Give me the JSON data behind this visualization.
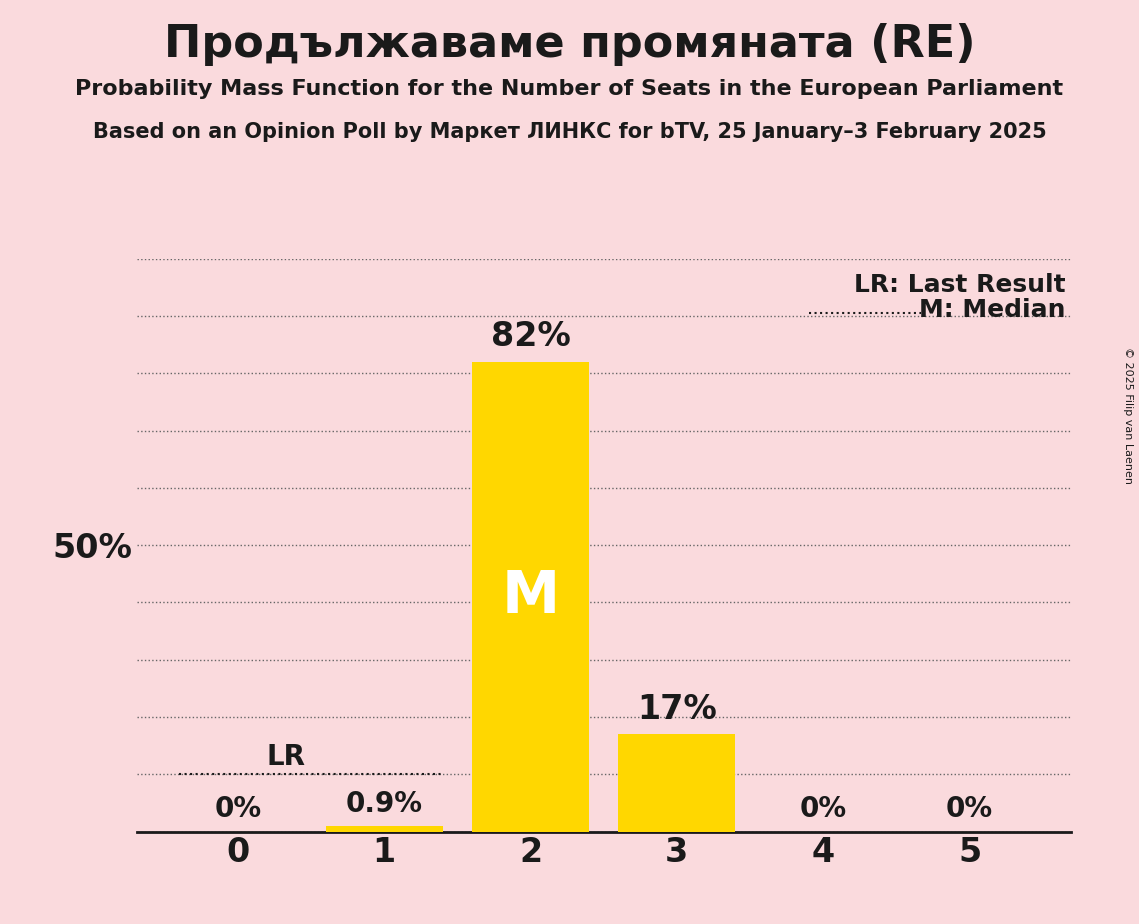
{
  "title": "Продължаваме промяната (RE)",
  "subtitle1": "Probability Mass Function for the Number of Seats in the European Parliament",
  "subtitle2": "Based on an Opinion Poll by Маркет ЛИНКС for bTV, 25 January–3 February 2025",
  "copyright": "© 2025 Filip van Laenen",
  "categories": [
    0,
    1,
    2,
    3,
    4,
    5
  ],
  "values": [
    0.0,
    0.9,
    82.0,
    17.0,
    0.0,
    0.0
  ],
  "bar_color": "#FFD700",
  "background_color": "#FADADD",
  "text_color": "#1a1a1a",
  "median_seat": 2,
  "last_result_seat": 1,
  "ylim": [
    0,
    100
  ],
  "yticks": [
    0,
    10,
    20,
    30,
    40,
    50,
    60,
    70,
    80,
    90,
    100
  ],
  "grid_color": "#666666",
  "legend_lr": "LR: Last Result",
  "legend_m": "M: Median",
  "bar_labels": [
    "0%",
    "0.9%",
    "82%",
    "17%",
    "0%",
    "0%"
  ]
}
